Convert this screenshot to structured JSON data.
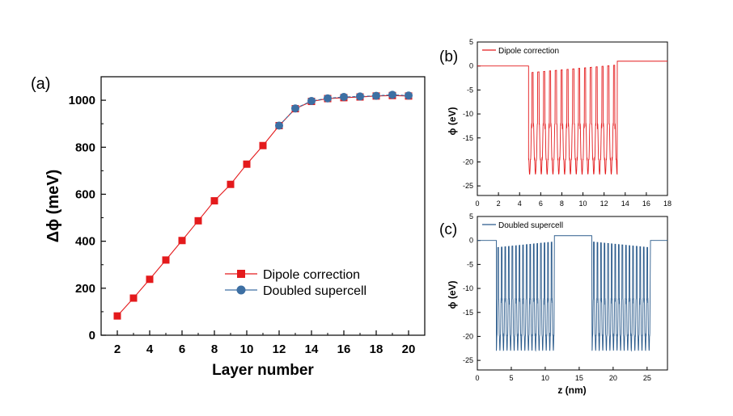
{
  "colors": {
    "red": "#e41a1c",
    "blue": "#2b5b8c",
    "blue_marker": "#3d6fa3",
    "axis": "#000000"
  },
  "chart_data": [
    {
      "id": "a",
      "panel_label": "(a)",
      "type": "line",
      "xlabel": "Layer number",
      "ylabel": "Δϕ (meV)",
      "xlim": [
        1,
        21
      ],
      "ylim": [
        0,
        1100
      ],
      "xticks": [
        2,
        4,
        6,
        8,
        10,
        12,
        14,
        16,
        18,
        20
      ],
      "yticks": [
        0,
        200,
        400,
        600,
        800,
        1000
      ],
      "series": [
        {
          "name": "Dipole correction",
          "marker": "square",
          "color": "#e41a1c",
          "x": [
            2,
            3,
            4,
            5,
            6,
            7,
            8,
            9,
            10,
            11,
            12,
            13,
            14,
            15,
            16,
            17,
            18,
            19,
            20
          ],
          "values": [
            82,
            158,
            238,
            320,
            403,
            487,
            572,
            642,
            728,
            807,
            892,
            964,
            995,
            1007,
            1011,
            1014,
            1018,
            1020,
            1018
          ]
        },
        {
          "name": "Doubled supercell",
          "marker": "circle",
          "color": "#3d6fa3",
          "x": [
            12,
            13,
            14,
            15,
            16,
            17,
            18,
            19,
            20
          ],
          "values": [
            892,
            965,
            997,
            1008,
            1014,
            1016,
            1019,
            1023,
            1020
          ]
        }
      ],
      "legend": [
        "Dipole correction",
        "Doubled supercell"
      ],
      "legend_position": "bottom-right"
    },
    {
      "id": "b",
      "panel_label": "(b)",
      "type": "line",
      "xlabel": "",
      "ylabel": "ϕ (eV)",
      "xlim": [
        0,
        18
      ],
      "ylim": [
        -27,
        5
      ],
      "xticks": [
        0,
        2,
        4,
        6,
        8,
        10,
        12,
        14,
        16,
        18
      ],
      "yticks": [
        5,
        0,
        -5,
        -10,
        -15,
        -20,
        -25
      ],
      "series": [
        {
          "name": "Dipole correction",
          "color": "#e41a1c",
          "x": [
            0,
            4.85,
            5.0,
            5.3,
            5.6,
            5.9,
            6.2,
            6.5,
            6.8,
            7.1,
            7.4,
            7.7,
            8.0,
            8.3,
            8.6,
            8.9,
            9.2,
            9.5,
            9.8,
            10.1,
            10.4,
            10.7,
            11.0,
            11.3,
            11.6,
            11.9,
            12.2,
            12.5,
            12.8,
            13.1,
            13.25,
            18
          ],
          "values": [
            0,
            0,
            -22.5,
            -1,
            -23,
            -0.8,
            -22.8,
            -0.6,
            -22.8,
            -0.5,
            -22.7,
            -0.4,
            -22.7,
            -0.3,
            -22.6,
            -0.2,
            -22.6,
            -0.1,
            -22.5,
            0.1,
            -22.5,
            0.2,
            -22.4,
            0.3,
            -22.4,
            0.4,
            -22.3,
            0.5,
            -22.3,
            0.6,
            1,
            1
          ]
        }
      ],
      "legend": [
        "Dipole correction"
      ],
      "legend_position": "top-left"
    },
    {
      "id": "c",
      "panel_label": "(c)",
      "type": "line",
      "xlabel": "z (nm)",
      "ylabel": "ϕ (eV)",
      "xlim": [
        0,
        28
      ],
      "ylim": [
        -27,
        5
      ],
      "xticks": [
        0,
        5,
        10,
        15,
        20,
        25
      ],
      "yticks": [
        5,
        0,
        -5,
        -10,
        -15,
        -20,
        -25
      ],
      "series": [
        {
          "name": "Doubled supercell",
          "color": "#2b5b8c",
          "x": [
            0,
            2.8,
            11.3,
            11.5,
            16.8,
            17.0,
            25.5,
            25.7,
            28
          ],
          "values": [
            0,
            0,
            0,
            1,
            1,
            0,
            0,
            0,
            0
          ]
        }
      ],
      "legend": [
        "Doubled supercell"
      ],
      "legend_position": "top-left"
    }
  ]
}
